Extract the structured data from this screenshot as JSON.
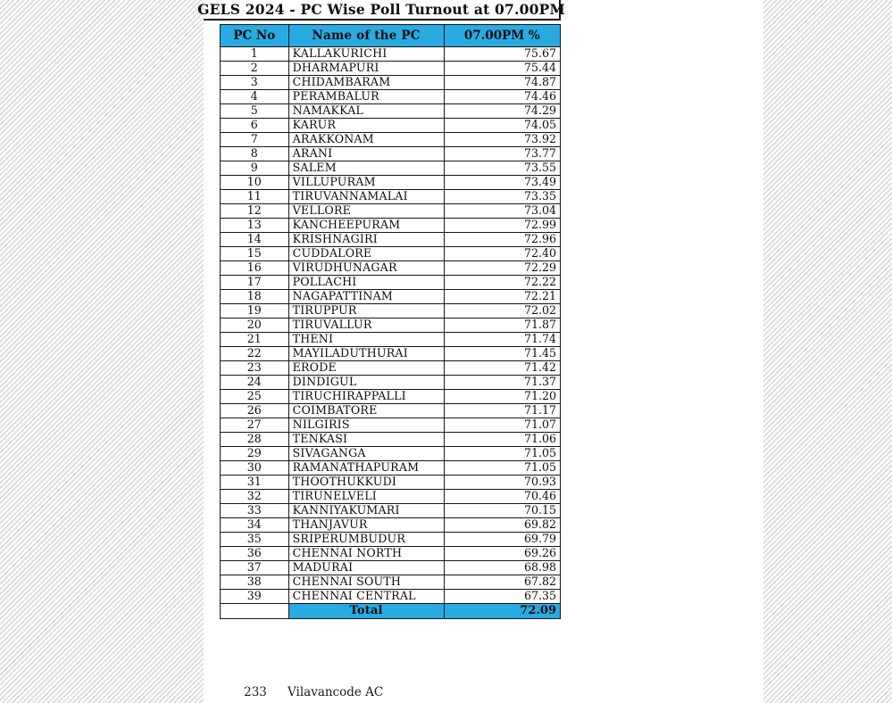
{
  "page": {
    "title": "GELS 2024 - PC Wise Poll Turnout at 07.00PM",
    "accent_color": "#29ABE2"
  },
  "table": {
    "columns": [
      "PC No",
      "Name of the PC",
      "07.00PM %"
    ],
    "rows": [
      [
        "1",
        "KALLAKURICHI",
        "75.67"
      ],
      [
        "2",
        "DHARMAPURI",
        "75.44"
      ],
      [
        "3",
        "CHIDAMBARAM",
        "74.87"
      ],
      [
        "4",
        "PERAMBALUR",
        "74.46"
      ],
      [
        "5",
        "NAMAKKAL",
        "74.29"
      ],
      [
        "6",
        "KARUR",
        "74.05"
      ],
      [
        "7",
        "ARAKKONAM",
        "73.92"
      ],
      [
        "8",
        "ARANI",
        "73.77"
      ],
      [
        "9",
        "SALEM",
        "73.55"
      ],
      [
        "10",
        "VILLUPURAM",
        "73.49"
      ],
      [
        "11",
        "TIRUVANNAMALAI",
        "73.35"
      ],
      [
        "12",
        "VELLORE",
        "73.04"
      ],
      [
        "13",
        "KANCHEEPURAM",
        "72.99"
      ],
      [
        "14",
        "KRISHNAGIRI",
        "72.96"
      ],
      [
        "15",
        "CUDDALORE",
        "72.40"
      ],
      [
        "16",
        "VIRUDHUNAGAR",
        "72.29"
      ],
      [
        "17",
        "POLLACHI",
        "72.22"
      ],
      [
        "18",
        "NAGAPATTINAM",
        "72.21"
      ],
      [
        "19",
        "TIRUPPUR",
        "72.02"
      ],
      [
        "20",
        "TIRUVALLUR",
        "71.87"
      ],
      [
        "21",
        "THENI",
        "71.74"
      ],
      [
        "22",
        "MAYILADUTHURAI",
        "71.45"
      ],
      [
        "23",
        "ERODE",
        "71.42"
      ],
      [
        "24",
        "DINDIGUL",
        "71.37"
      ],
      [
        "25",
        "TIRUCHIRAPPALLI",
        "71.20"
      ],
      [
        "26",
        "COIMBATORE",
        "71.17"
      ],
      [
        "27",
        "NILGIRIS",
        "71.07"
      ],
      [
        "28",
        "TENKASI",
        "71.06"
      ],
      [
        "29",
        "SIVAGANGA",
        "71.05"
      ],
      [
        "30",
        "RAMANATHAPURAM",
        "71.05"
      ],
      [
        "31",
        "THOOTHUKKUDI",
        "70.93"
      ],
      [
        "32",
        "TIRUNELVELI",
        "70.46"
      ],
      [
        "33",
        "KANNIYAKUMARI",
        "70.15"
      ],
      [
        "34",
        "THANJAVUR",
        "69.82"
      ],
      [
        "35",
        "SRIPERUMBUDUR",
        "69.79"
      ],
      [
        "36",
        "CHENNAI NORTH",
        "69.26"
      ],
      [
        "37",
        "MADURAI",
        "68.98"
      ],
      [
        "38",
        "CHENNAI SOUTH",
        "67.82"
      ],
      [
        "39",
        "CHENNAI CENTRAL",
        "67.35"
      ]
    ],
    "total_label": "Total",
    "total_value": "72.09"
  },
  "footnote": {
    "number": "233",
    "text": "Vilavancode AC"
  }
}
